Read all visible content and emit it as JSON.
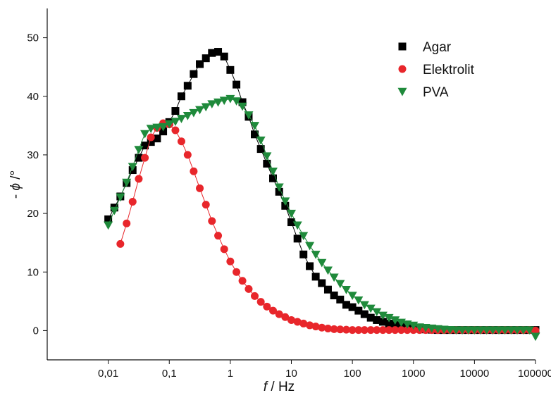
{
  "chart_data": {
    "type": "scatter",
    "xscale": "log",
    "xlim": [
      0.001,
      100000
    ],
    "ylim": [
      -5,
      55
    ],
    "xticks": [
      0.01,
      0.1,
      1,
      10,
      100,
      1000,
      10000,
      100000
    ],
    "xtick_labels": [
      "0,01",
      "0,1",
      "1",
      "10",
      "100",
      "1000",
      "10000",
      "100000"
    ],
    "yticks": [
      0,
      10,
      20,
      30,
      40,
      50
    ],
    "ytick_labels": [
      "0",
      "10",
      "20",
      "30",
      "40",
      "50"
    ],
    "xlabel_italic": "f",
    "xlabel_rest": " / Hz",
    "ylabel_prefix": "- ",
    "ylabel_italic": "ϕ",
    "ylabel_suffix": " /°",
    "grid": false,
    "legend_position": "top-right",
    "series": [
      {
        "name": "Agar",
        "color": "#000000",
        "marker": "square",
        "x": [
          0.01,
          0.0126,
          0.0158,
          0.02,
          0.0251,
          0.0316,
          0.0398,
          0.05,
          0.063,
          0.0794,
          0.1,
          0.126,
          0.158,
          0.2,
          0.251,
          0.316,
          0.398,
          0.5,
          0.631,
          0.794,
          1,
          1.26,
          1.58,
          2,
          2.51,
          3.16,
          3.98,
          5.01,
          6.31,
          7.94,
          10,
          12.6,
          15.8,
          20,
          25.1,
          31.6,
          39.8,
          50.1,
          63.1,
          79.4,
          100,
          126,
          158,
          200,
          251,
          316,
          398,
          501,
          631,
          794,
          1000,
          1259,
          1585,
          1995,
          2512,
          3162,
          3981,
          5012,
          6310,
          7943,
          10000,
          12589,
          15849,
          19953,
          25119,
          31623,
          39811,
          50119,
          63096,
          79433,
          100000
        ],
        "y": [
          19,
          21,
          22.9,
          25.2,
          27.4,
          29.5,
          31.6,
          32.2,
          32.8,
          34,
          35.6,
          37.5,
          40,
          41.8,
          43.8,
          45.5,
          46.5,
          47.4,
          47.6,
          46.8,
          44.5,
          42,
          39,
          36.5,
          33.5,
          31,
          28.5,
          26,
          23.7,
          21.3,
          18.5,
          15.7,
          13,
          11,
          9.2,
          8.1,
          7,
          6,
          5.3,
          4.4,
          4,
          3.4,
          2.8,
          2.2,
          1.8,
          1.5,
          1.2,
          1,
          0.8,
          0.6,
          0.4,
          0.3,
          0.2,
          0.15,
          0.1,
          0.1,
          0.1,
          0.1,
          0.1,
          0.1,
          0.1,
          0.1,
          0.1,
          0.1,
          0.1,
          0.1,
          0.1,
          0.1,
          0.1,
          0.1,
          0.1
        ]
      },
      {
        "name": "Elektrolit",
        "color": "#e8262b",
        "marker": "circle",
        "x": [
          0.0158,
          0.02,
          0.0251,
          0.0316,
          0.0398,
          0.05,
          0.063,
          0.0794,
          0.1,
          0.126,
          0.158,
          0.2,
          0.251,
          0.316,
          0.398,
          0.5,
          0.631,
          0.794,
          1,
          1.26,
          1.58,
          2,
          2.51,
          3.16,
          3.98,
          5.01,
          6.31,
          7.94,
          10,
          12.6,
          15.8,
          20,
          25.1,
          31.6,
          39.8,
          50.1,
          63.1,
          79.4,
          100,
          126,
          158,
          200,
          251,
          316,
          398,
          501,
          631,
          794,
          1000,
          1259,
          1585,
          1995,
          2512,
          3162,
          3981,
          5012,
          6310,
          7943,
          10000,
          12589,
          15849,
          19953,
          25119,
          31623,
          39811,
          50119,
          63096,
          79433,
          100000
        ],
        "y": [
          14.8,
          18.3,
          22,
          25.9,
          29.5,
          33,
          34.6,
          35.4,
          35.2,
          34.2,
          32.3,
          30,
          27.2,
          24.3,
          21.5,
          18.7,
          16.2,
          13.9,
          11.8,
          10,
          8.5,
          7.1,
          5.9,
          4.9,
          4.1,
          3.4,
          2.8,
          2.3,
          1.8,
          1.5,
          1.2,
          0.9,
          0.7,
          0.5,
          0.35,
          0.25,
          0.2,
          0.15,
          0.1,
          0.1,
          0.1,
          0.1,
          0.1,
          0.1,
          0.1,
          0.1,
          0.1,
          0.1,
          0.1,
          0.1,
          0.1,
          0.1,
          0.1,
          0.1,
          0.1,
          0.1,
          0.1,
          0.1,
          0.1,
          0.1,
          0.1,
          0.1,
          0.1,
          0.1,
          0.1,
          0.1,
          0.1,
          0.1,
          0
        ]
      },
      {
        "name": "PVA",
        "color": "#1f8a3b",
        "marker": "triangle-down",
        "x": [
          0.01,
          0.0126,
          0.0158,
          0.02,
          0.0251,
          0.0316,
          0.0398,
          0.05,
          0.063,
          0.0794,
          0.1,
          0.126,
          0.158,
          0.2,
          0.251,
          0.316,
          0.398,
          0.5,
          0.631,
          0.794,
          1,
          1.26,
          1.58,
          2,
          2.51,
          3.16,
          3.98,
          5.01,
          6.31,
          7.94,
          10,
          12.6,
          15.8,
          20,
          25.1,
          31.6,
          39.8,
          50.1,
          63.1,
          79.4,
          100,
          126,
          158,
          200,
          251,
          316,
          398,
          501,
          631,
          794,
          1000,
          1259,
          1585,
          1995,
          2512,
          3162,
          3981,
          5012,
          6310,
          7943,
          10000,
          12589,
          15849,
          19953,
          25119,
          31623,
          39811,
          50119,
          63096,
          79433,
          100000
        ],
        "y": [
          18,
          20.5,
          22.8,
          25.3,
          28,
          30.9,
          33.6,
          34.5,
          34.7,
          34.8,
          35.3,
          35.7,
          36.2,
          36.7,
          37.2,
          37.7,
          38.2,
          38.7,
          39,
          39.3,
          39.6,
          39.2,
          38.3,
          36.8,
          35,
          32.5,
          29.8,
          27.2,
          24.5,
          22.1,
          20,
          18,
          16.2,
          14.5,
          13,
          11.6,
          10.3,
          9.1,
          8,
          7,
          6,
          5.2,
          4.4,
          3.8,
          3.2,
          2.6,
          2.2,
          1.8,
          1.4,
          1.1,
          0.9,
          0.6,
          0.5,
          0.4,
          0.3,
          0.2,
          0.15,
          0.1,
          0.1,
          0.1,
          0.1,
          0.1,
          0.1,
          0.1,
          0.1,
          0.1,
          0.1,
          0.1,
          0.1,
          0.1,
          -1
        ]
      }
    ]
  }
}
